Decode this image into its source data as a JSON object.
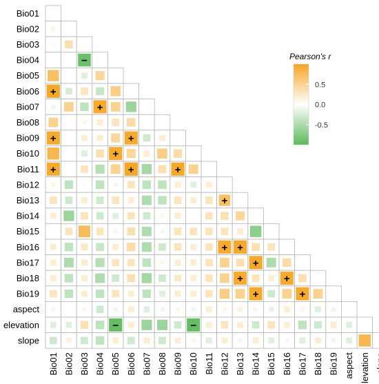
{
  "chart_data": {
    "type": "heatmap",
    "variables": [
      "Bio01",
      "Bio02",
      "Bio03",
      "Bio04",
      "Bio05",
      "Bio06",
      "Bio07",
      "Bio08",
      "Bio09",
      "Bio10",
      "Bio11",
      "Bio12",
      "Bio13",
      "Bio14",
      "Bio15",
      "Bio16",
      "Bio17",
      "Bio18",
      "Bio19",
      "aspect",
      "elevation",
      "slope"
    ],
    "legend": {
      "title": "Pearson's r",
      "ticks": [
        0.5,
        0.0,
        -0.5
      ],
      "tick_labels": [
        "0.5",
        "0.0",
        "-0.5"
      ],
      "range": [
        -1,
        1
      ],
      "colors": {
        "positive": "#F5A623",
        "zero": "#FFFFFF",
        "negative": "#5CB85C"
      }
    },
    "layout": "lower-triangle",
    "significant_positive_symbol": "+",
    "significant_negative_symbol": "−",
    "rows": [
      {
        "name": "Bio01",
        "values": []
      },
      {
        "name": "Bio02",
        "values": [
          0.1
        ]
      },
      {
        "name": "Bio03",
        "values": [
          -0.05,
          0.35
        ]
      },
      {
        "name": "Bio04",
        "values": [
          0.0,
          0.0,
          -0.9
        ]
      },
      {
        "name": "Bio05",
        "values": [
          0.7,
          0.0,
          -0.2,
          0.45
        ]
      },
      {
        "name": "Bio06",
        "values": [
          0.97,
          -0.25,
          0.3,
          -0.35,
          0.55
        ]
      },
      {
        "name": "Bio07",
        "values": [
          -0.1,
          0.5,
          -0.4,
          0.95,
          0.5,
          -0.6
        ]
      },
      {
        "name": "Bio08",
        "values": [
          0.5,
          0.0,
          0.1,
          0.2,
          0.3,
          0.4,
          0.0
        ]
      },
      {
        "name": "Bio09",
        "values": [
          0.95,
          0.0,
          0.2,
          0.2,
          0.45,
          0.95,
          -0.3,
          0.2
        ]
      },
      {
        "name": "Bio10",
        "values": [
          0.8,
          0.0,
          -0.2,
          0.35,
          0.95,
          0.45,
          0.2,
          0.55,
          0.4
        ]
      },
      {
        "name": "Bio11",
        "values": [
          0.95,
          0.0,
          0.3,
          -0.45,
          0.5,
          0.98,
          -0.55,
          0.35,
          0.97,
          0.5
        ]
      },
      {
        "name": "Bio12",
        "values": [
          0.1,
          -0.4,
          0.05,
          -0.4,
          -0.1,
          0.3,
          -0.4,
          -0.4,
          0.2,
          -0.2,
          0.2
        ]
      },
      {
        "name": "Bio13",
        "values": [
          0.3,
          -0.3,
          0.2,
          -0.3,
          0.3,
          0.2,
          -0.5,
          -0.4,
          0.3,
          0.2,
          0.3,
          0.7
        ]
      },
      {
        "name": "Bio14",
        "values": [
          0.2,
          -0.6,
          0.3,
          -0.3,
          -0.2,
          0.3,
          -0.3,
          0.1,
          0.2,
          0.0,
          0.3,
          0.35,
          0.45
        ]
      },
      {
        "name": "Bio15",
        "values": [
          0.0,
          0.3,
          0.75,
          0.3,
          0.1,
          0.35,
          -0.5,
          0.1,
          0.3,
          0.3,
          0.3,
          0.3,
          0.2,
          -0.7
        ]
      },
      {
        "name": "Bio16",
        "values": [
          0.2,
          -0.4,
          0.25,
          -0.35,
          0.2,
          0.4,
          -0.5,
          -0.3,
          0.3,
          0.2,
          0.3,
          0.95,
          0.97,
          0.35,
          0.3
        ]
      },
      {
        "name": "Bio17",
        "values": [
          0.2,
          -0.5,
          0.2,
          -0.45,
          0.3,
          0.3,
          -0.4,
          0.1,
          0.2,
          0.2,
          0.3,
          0.5,
          0.35,
          0.97,
          -0.5,
          0.4
        ]
      },
      {
        "name": "Bio18",
        "values": [
          0.2,
          -0.4,
          0.2,
          -0.5,
          -0.3,
          0.35,
          -0.55,
          -0.3,
          0.25,
          0.2,
          0.3,
          0.5,
          0.95,
          0.3,
          0.2,
          0.95,
          0.35
        ]
      },
      {
        "name": "Bio19",
        "values": [
          0.3,
          -0.4,
          0.2,
          -0.4,
          0.3,
          0.2,
          -0.4,
          -0.2,
          0.2,
          0.2,
          0.3,
          0.55,
          0.5,
          0.95,
          -0.3,
          0.5,
          0.95,
          0.5
        ]
      },
      {
        "name": "aspect",
        "values": [
          0.1,
          0.0,
          0.1,
          -0.3,
          -0.1,
          0.2,
          -0.2,
          -0.1,
          0.1,
          -0.1,
          0.2,
          0.1,
          0.15,
          0.1,
          -0.15,
          0.2,
          0.1,
          -0.2,
          -0.1
        ]
      },
      {
        "name": "elevation",
        "values": [
          -0.2,
          -0.2,
          0.35,
          -0.4,
          -0.95,
          0.2,
          -0.6,
          -0.6,
          -0.3,
          -0.95,
          0.2,
          0.3,
          0.2,
          -0.3,
          0.3,
          0.2,
          -0.4,
          -0.3,
          0.2,
          -0.2
        ]
      },
      {
        "name": "slope",
        "values": [
          -0.3,
          0.15,
          -0.3,
          -0.4,
          0.2,
          -0.3,
          0.2,
          -0.3,
          0.2,
          0.1,
          -0.2,
          0.2,
          -0.1,
          0.2,
          -0.2,
          0.1,
          -0.2,
          0.2,
          -0.1,
          -0.2,
          0.8
        ]
      }
    ],
    "significant_cells": [
      {
        "row": "Bio04",
        "col": "Bio03",
        "sign": "−"
      },
      {
        "row": "Bio06",
        "col": "Bio01",
        "sign": "+"
      },
      {
        "row": "Bio07",
        "col": "Bio04",
        "sign": "+"
      },
      {
        "row": "Bio09",
        "col": "Bio01",
        "sign": "+"
      },
      {
        "row": "Bio09",
        "col": "Bio06",
        "sign": "+"
      },
      {
        "row": "Bio10",
        "col": "Bio05",
        "sign": "+"
      },
      {
        "row": "Bio11",
        "col": "Bio01",
        "sign": "+"
      },
      {
        "row": "Bio11",
        "col": "Bio06",
        "sign": "+"
      },
      {
        "row": "Bio11",
        "col": "Bio09",
        "sign": "+"
      },
      {
        "row": "Bio13",
        "col": "Bio12",
        "sign": "+"
      },
      {
        "row": "Bio16",
        "col": "Bio12",
        "sign": "+"
      },
      {
        "row": "Bio16",
        "col": "Bio13",
        "sign": "+"
      },
      {
        "row": "Bio17",
        "col": "Bio14",
        "sign": "+"
      },
      {
        "row": "Bio18",
        "col": "Bio13",
        "sign": "+"
      },
      {
        "row": "Bio18",
        "col": "Bio16",
        "sign": "+"
      },
      {
        "row": "Bio19",
        "col": "Bio14",
        "sign": "+"
      },
      {
        "row": "Bio19",
        "col": "Bio17",
        "sign": "+"
      },
      {
        "row": "elevation",
        "col": "Bio05",
        "sign": "−"
      },
      {
        "row": "elevation",
        "col": "Bio10",
        "sign": "−"
      }
    ]
  }
}
